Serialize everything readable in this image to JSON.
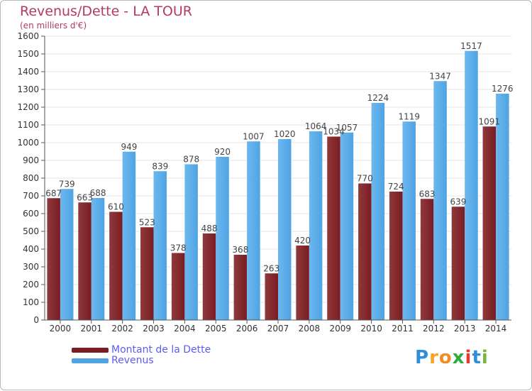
{
  "header": {
    "title": "Revenus/Dette - LA TOUR",
    "subtitle": "(en milliers d'€)"
  },
  "legend": {
    "debt_label": "Montant de la Dette",
    "revenue_label": "Revenus"
  },
  "logo": {
    "text": "Proxiti",
    "letters": [
      "P",
      "r",
      "o",
      "x",
      "i",
      "t",
      "i"
    ],
    "colors": [
      "#2e8fd8",
      "#f5a623",
      "#f28c28",
      "#2eaa3f",
      "#e53935",
      "#2e8fd8",
      "#7cb342"
    ]
  },
  "colors": {
    "debt": "#7a1c22",
    "debt_light": "#8e3a3d",
    "revenue": "#4fa3e3",
    "revenue_light": "#6cb8ef",
    "axis": "#555555",
    "grid": "#e4e4e4",
    "title": "#b23a63",
    "legend_text": "#5c5cf0"
  },
  "chart_data": {
    "type": "bar",
    "title": "Revenus/Dette - LA TOUR",
    "subtitle": "(en milliers d'€)",
    "categories": [
      "2000",
      "2001",
      "2002",
      "2003",
      "2004",
      "2005",
      "2006",
      "2007",
      "2008",
      "2009",
      "2010",
      "2011",
      "2012",
      "2013",
      "2014"
    ],
    "series": [
      {
        "name": "Montant de la Dette",
        "values": [
          687,
          663,
          610,
          523,
          378,
          488,
          368,
          263,
          420,
          1034,
          770,
          724,
          683,
          639,
          1091
        ]
      },
      {
        "name": "Revenus",
        "values": [
          739,
          688,
          949,
          839,
          878,
          920,
          1007,
          1020,
          1064,
          1057,
          1224,
          1119,
          1347,
          1517,
          1276
        ]
      }
    ],
    "value_labels": {
      "debt": [
        "687",
        "663",
        "610",
        "523",
        "378",
        "488",
        "368",
        "263",
        "420",
        "1034",
        "770",
        "724",
        "683",
        "639",
        "1091"
      ],
      "revenue": [
        "739",
        "688",
        "949",
        "839",
        "878",
        "920",
        "1007",
        "1020",
        "1064",
        "1057",
        "1224",
        "1119",
        "1347",
        "1517",
        "1276"
      ]
    },
    "yticks": [
      0,
      100,
      200,
      300,
      400,
      500,
      600,
      700,
      800,
      900,
      1000,
      1100,
      1200,
      1300,
      1400,
      1500,
      1600
    ],
    "ylim": [
      0,
      1600
    ],
    "grid": true,
    "legend_position": "bottom-left"
  }
}
